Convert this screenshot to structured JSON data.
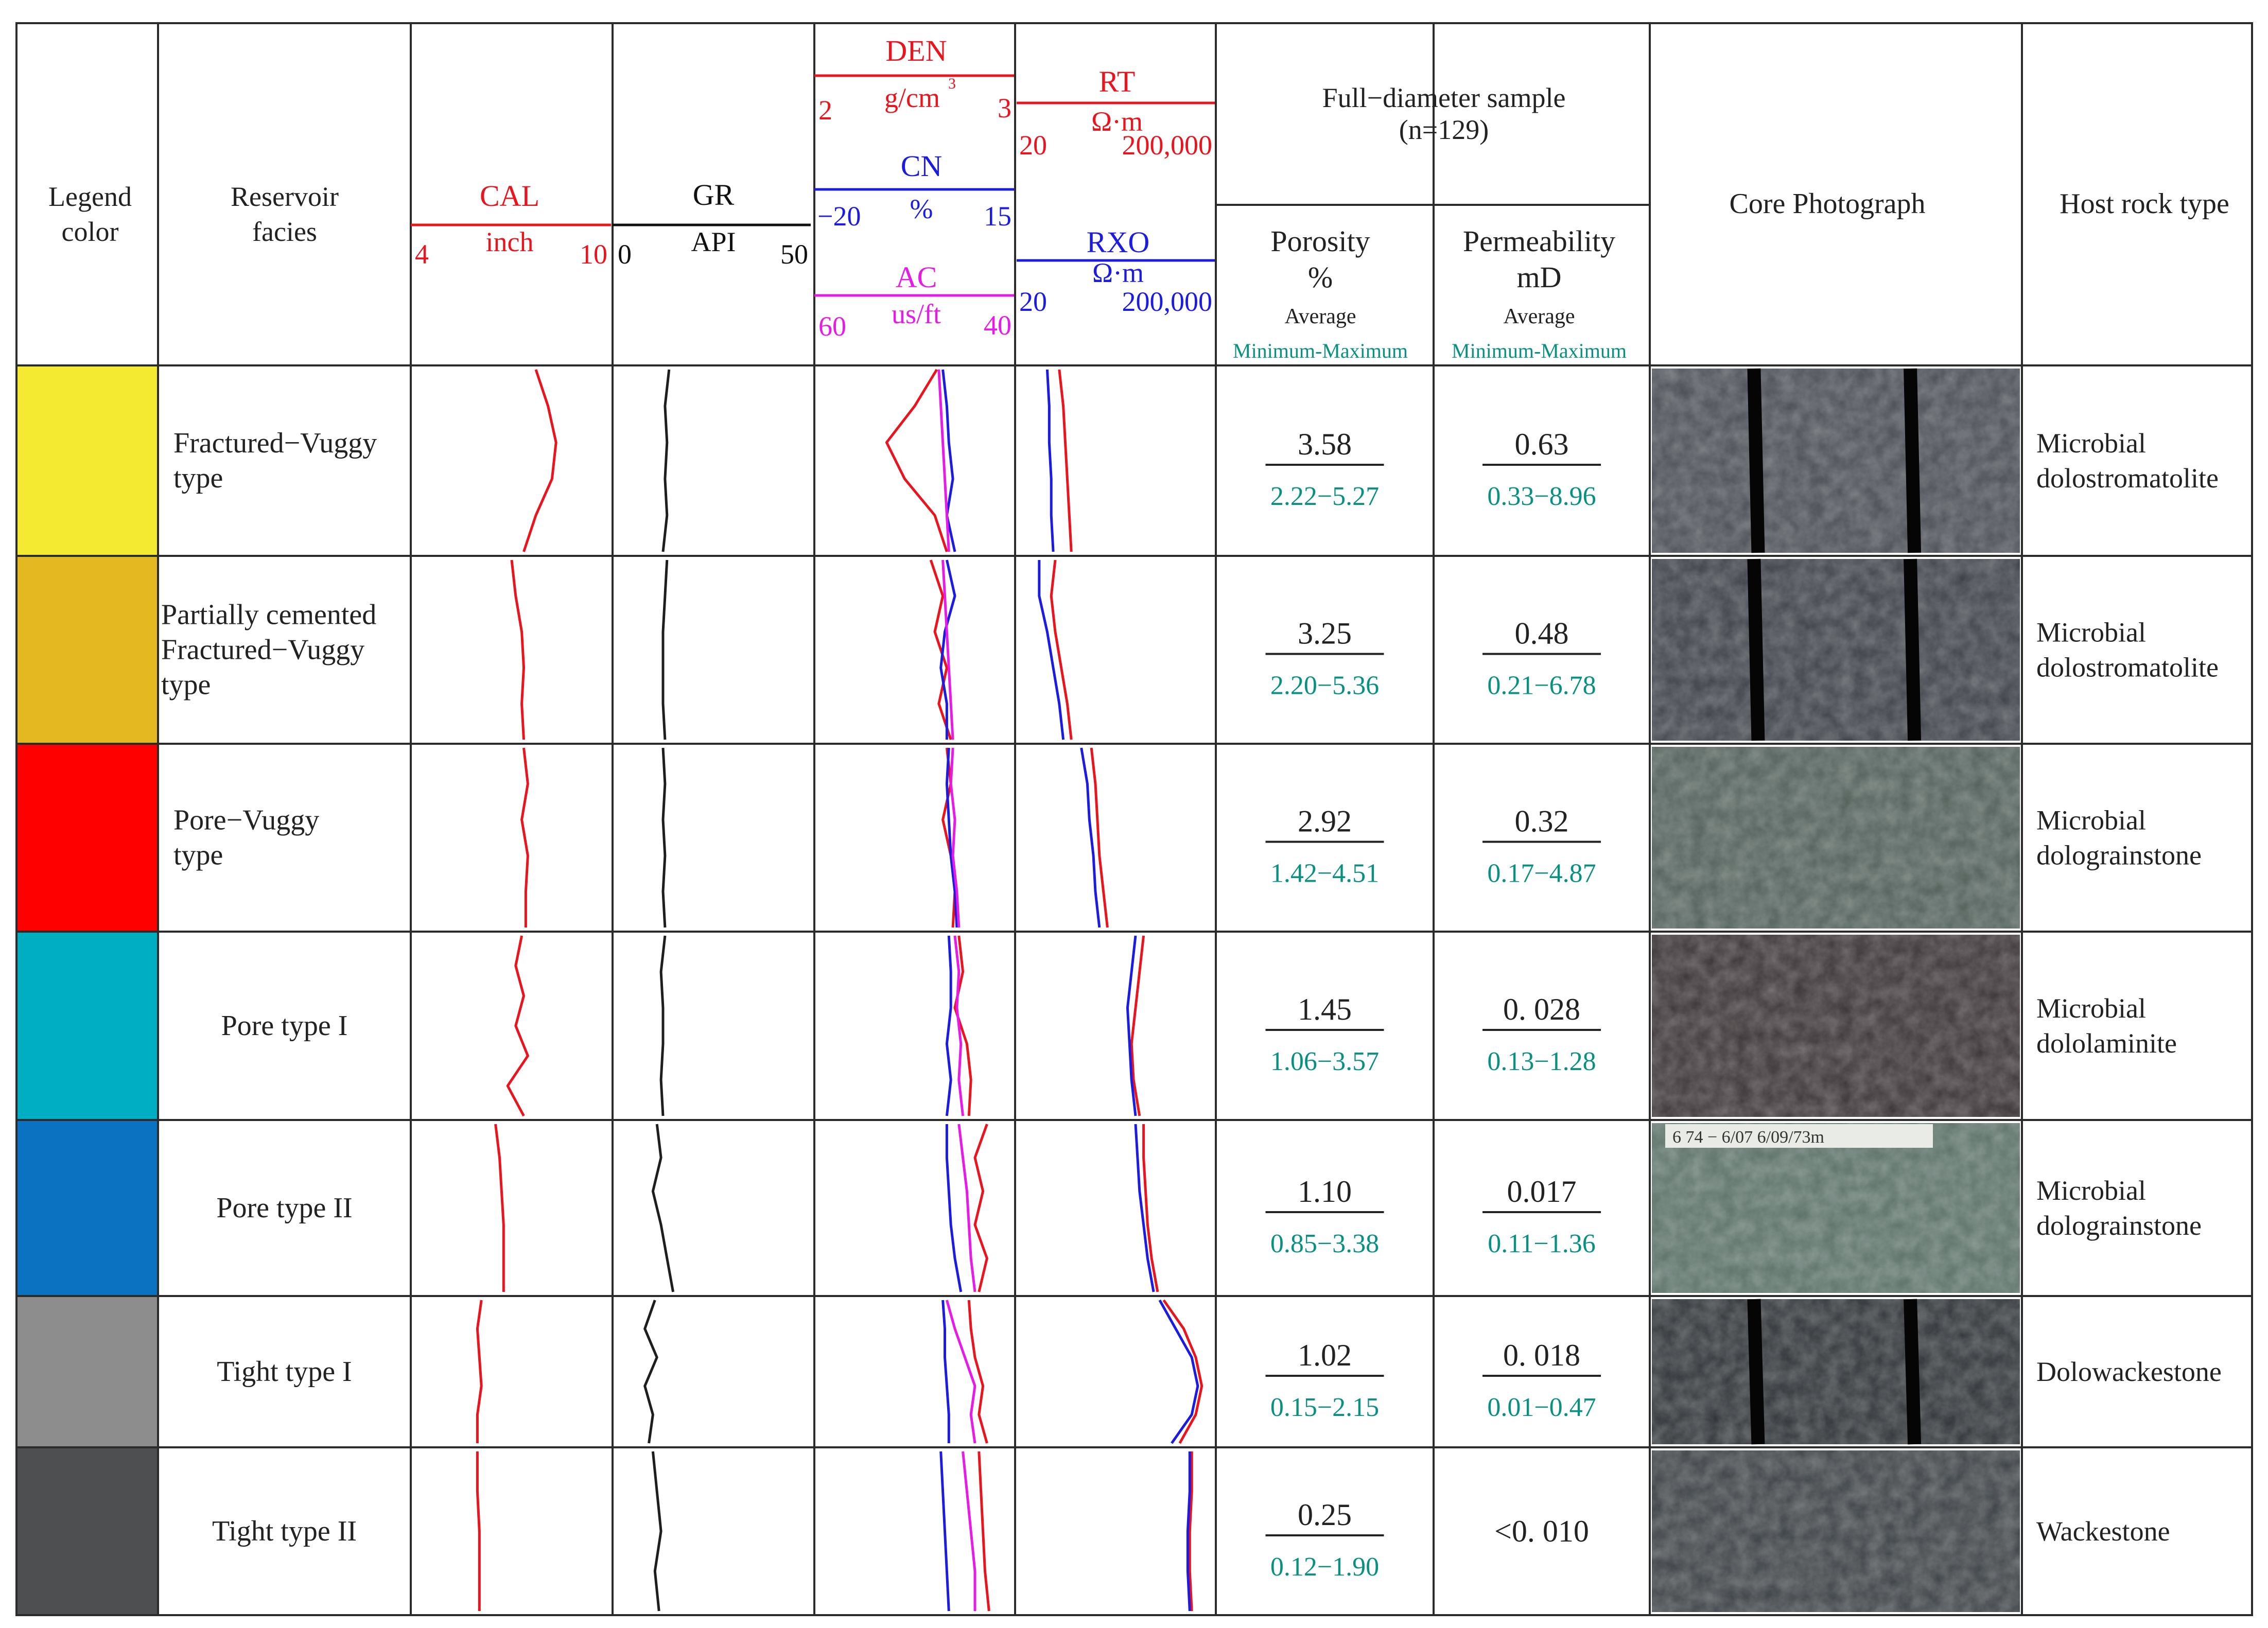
{
  "colors": {
    "red": "#e8141e",
    "blue": "#1c1ce0",
    "magenta": "#e61ce6",
    "black": "#1e1e1e",
    "teal": "#0a9080"
  },
  "header": {
    "legend_color": [
      "Legend",
      "color"
    ],
    "reservoir_facies": [
      "Reservoir",
      "facies"
    ],
    "cal": {
      "name": "CAL",
      "unit": "inch",
      "min": "4",
      "max": "10"
    },
    "gr": {
      "name": "GR",
      "unit": "API",
      "min": "0",
      "max": "50"
    },
    "den": {
      "name": "DEN",
      "unit": "g/cm",
      "unit_sup": "3",
      "min": "2",
      "max": "3"
    },
    "cn": {
      "name": "CN",
      "unit": "%",
      "min": "−20",
      "max": "15"
    },
    "ac": {
      "name": "AC",
      "unit": "us/ft",
      "min": "60",
      "max": "40"
    },
    "rt": {
      "name": "RT",
      "unit": "Ω·m",
      "min": "20",
      "max": "200,000"
    },
    "rxo": {
      "name": "RXO",
      "unit": "Ω·m",
      "min": "20",
      "max": "200,000"
    },
    "full_diameter": [
      "Full−diameter sample",
      "(n=129)"
    ],
    "porosity": [
      "Porosity",
      "%"
    ],
    "permeability": [
      "Permeability",
      "mD"
    ],
    "average": "Average",
    "min_max": "Minimum-Maximum",
    "core_photo": "Core Photograph",
    "host_rock": "Host rock type"
  },
  "rows": [
    {
      "color": "#f5ea32",
      "facies": [
        "Fractured−Vuggy",
        "type"
      ],
      "porosity_avg": "3.58",
      "porosity_range": "2.22−5.27",
      "perm_avg": "0.63",
      "perm_range": "0.33−8.96",
      "host_rock": [
        "Microbial",
        "dolostromatolite"
      ],
      "photo_tone": "#4a4e55"
    },
    {
      "color": "#e3b821",
      "facies": [
        "Partially cemented",
        "Fractured−Vuggy",
        "type"
      ],
      "porosity_avg": "3.25",
      "porosity_range": "2.20−5.36",
      "perm_avg": "0.48",
      "perm_range": "0.21−6.78",
      "host_rock": [
        "Microbial",
        "dolostromatolite"
      ],
      "photo_tone": "#3e4249"
    },
    {
      "color": "#ff0000",
      "facies": [
        "Pore−Vuggy",
        "type"
      ],
      "porosity_avg": "2.92",
      "porosity_range": "1.42−4.51",
      "perm_avg": "0.32",
      "perm_range": "0.17−4.87",
      "host_rock": [
        "Microbial",
        "dolograinstone"
      ],
      "photo_tone": "#52605a"
    },
    {
      "color": "#00aec3",
      "facies": [
        "Pore type I"
      ],
      "porosity_avg": "1.45",
      "porosity_range": "1.06−3.57",
      "perm_avg": "0. 028",
      "perm_range": "0.13−1.28",
      "host_rock": [
        "Microbial",
        "dololaminite"
      ],
      "photo_tone": "#3c3436"
    },
    {
      "color": "#0a72c0",
      "facies": [
        "Pore type II"
      ],
      "porosity_avg": "1.10",
      "porosity_range": "0.85−3.38",
      "perm_avg": "0.017",
      "perm_range": "0.11−1.36",
      "host_rock": [
        "Microbial",
        "dolograinstone"
      ],
      "photo_tone": "#5b7168"
    },
    {
      "color": "#8d8d8d",
      "facies": [
        "Tight type I"
      ],
      "porosity_avg": "1.02",
      "porosity_range": "0.15−2.15",
      "perm_avg": "0. 018",
      "perm_range": "0.01−0.47",
      "host_rock": [
        "Dolowackestone"
      ],
      "photo_tone": "#303438"
    },
    {
      "color": "#4e4f50",
      "facies": [
        "Tight type II"
      ],
      "porosity_avg": "0.25",
      "porosity_range": "0.12−1.90",
      "perm_avg": "<0. 010",
      "perm_range": "",
      "host_rock": [
        "Wackestone"
      ],
      "photo_tone": "#3d4246"
    }
  ],
  "core_photo_labels": {
    "row5_header": "6 74 − 6/07 6/09/73m"
  }
}
